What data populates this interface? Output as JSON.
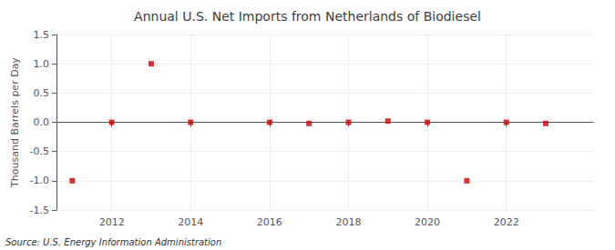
{
  "chart_data": {
    "type": "scatter",
    "title": "Annual U.S. Net Imports from Netherlands of Biodiesel",
    "ylabel": "Thousand Barrels per Day",
    "annotation": "Source: U.S. Energy Information Administration",
    "x": [
      2011,
      2012,
      2013,
      2014,
      2016,
      2017,
      2018,
      2019,
      2020,
      2021,
      2022,
      2023
    ],
    "values": [
      -1.0,
      0.0,
      1.0,
      0.0,
      0.0,
      -0.02,
      0.0,
      0.02,
      0.0,
      -1.0,
      0.0,
      -0.02
    ],
    "color": "#cc0000",
    "marker": "square",
    "xlim": [
      2010.6,
      2024.2
    ],
    "xticks": [
      2012,
      2014,
      2016,
      2018,
      2020,
      2022
    ],
    "ylim": [
      -1.5,
      1.5
    ],
    "yticks": [
      -1.5,
      {
        "value": -1.0,
        "label": "-1.0"
      },
      -0.5,
      {
        "value": 0.0,
        "label": "0.0"
      },
      0.5,
      {
        "value": 1.0,
        "label": "1.0"
      },
      1.5
    ],
    "grid": true
  }
}
